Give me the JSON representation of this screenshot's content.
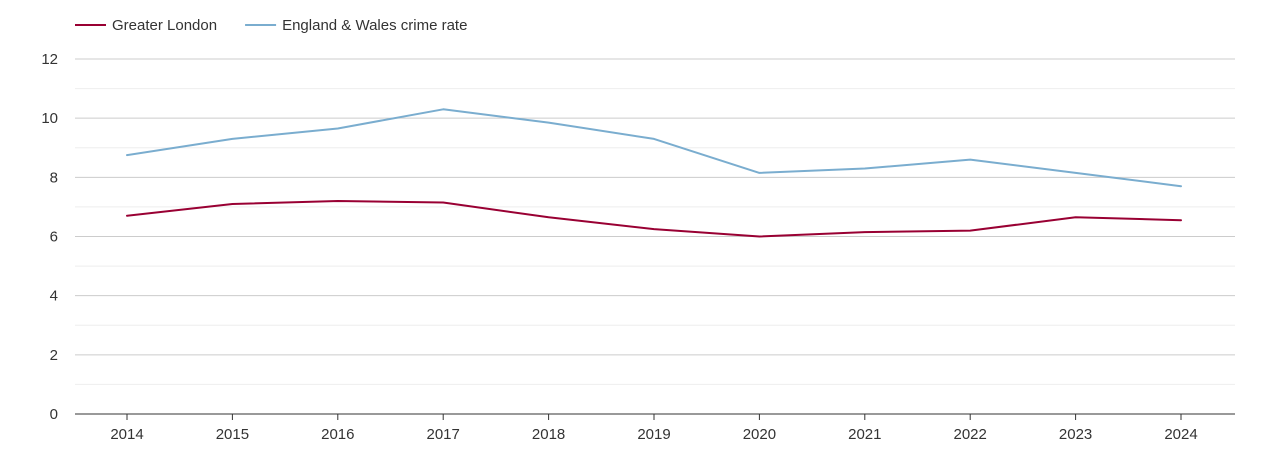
{
  "chart_data": {
    "type": "line",
    "title": "",
    "xlabel": "",
    "ylabel": "",
    "x": [
      2014,
      2015,
      2016,
      2017,
      2018,
      2019,
      2020,
      2021,
      2022,
      2023,
      2024
    ],
    "x_tick_labels": [
      "2014",
      "2015",
      "2016",
      "2017",
      "2018",
      "2019",
      "2020",
      "2021",
      "2022",
      "2023",
      "2024"
    ],
    "y_ticks": [
      0,
      2,
      4,
      6,
      8,
      10,
      12
    ],
    "y_tick_labels": [
      "0",
      "2",
      "4",
      "6",
      "8",
      "10",
      "12"
    ],
    "ylim": [
      0,
      12
    ],
    "grid": true,
    "legend_position": "top-left",
    "series": [
      {
        "name": "Greater London",
        "color": "#990033",
        "values": [
          6.7,
          7.1,
          7.2,
          7.15,
          6.65,
          6.25,
          6.0,
          6.15,
          6.2,
          6.65,
          6.55
        ]
      },
      {
        "name": "England & Wales crime rate",
        "color": "#7aadcf",
        "values": [
          8.75,
          9.3,
          9.65,
          10.3,
          9.85,
          9.3,
          8.15,
          8.3,
          8.6,
          8.15,
          7.7
        ]
      }
    ]
  }
}
